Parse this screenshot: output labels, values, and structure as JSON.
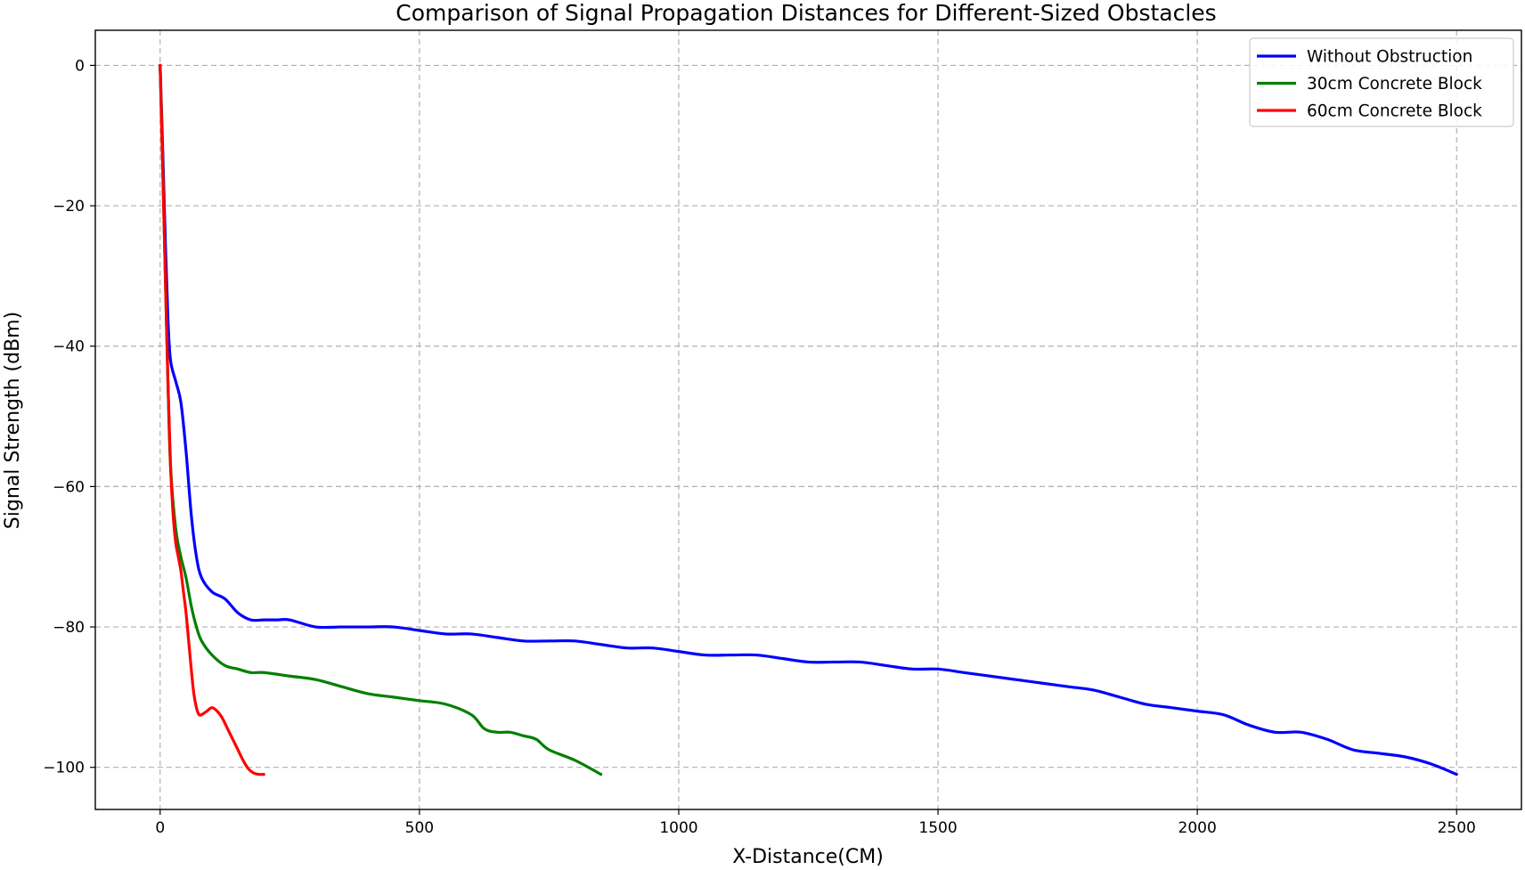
{
  "chart_data": {
    "type": "line",
    "title": "Comparison of Signal Propagation Distances for Different-Sized Obstacles",
    "xlabel": "X-Distance(CM)",
    "ylabel": "Signal Strength (dBm)",
    "xlim": [
      -125,
      2625
    ],
    "ylim": [
      -106,
      5
    ],
    "xticks": [
      0,
      500,
      1000,
      1500,
      2000,
      2500
    ],
    "yticks": [
      0,
      -20,
      -40,
      -60,
      -80,
      -100
    ],
    "xtick_labels": [
      "0",
      "500",
      "1000",
      "1500",
      "2000",
      "2500"
    ],
    "ytick_labels": [
      "0",
      "−20",
      "−40",
      "−60",
      "−80",
      "−100"
    ],
    "grid": true,
    "legend_position": "top-right",
    "series": [
      {
        "name": "Without Obstruction",
        "color": "#0000ff",
        "x": [
          0,
          5,
          10,
          15,
          20,
          30,
          40,
          50,
          60,
          70,
          80,
          100,
          125,
          150,
          175,
          200,
          225,
          250,
          300,
          350,
          400,
          450,
          500,
          550,
          600,
          650,
          700,
          750,
          800,
          850,
          900,
          950,
          1000,
          1050,
          1100,
          1150,
          1200,
          1250,
          1300,
          1350,
          1400,
          1450,
          1500,
          1550,
          1600,
          1650,
          1700,
          1750,
          1800,
          1850,
          1900,
          1950,
          2000,
          2050,
          2100,
          2150,
          2200,
          2250,
          2300,
          2350,
          2400,
          2450,
          2500
        ],
        "y": [
          0,
          -12,
          -25,
          -36,
          -42,
          -45,
          -48,
          -55,
          -64,
          -70,
          -73,
          -75,
          -76,
          -78,
          -79,
          -79,
          -79,
          -79,
          -80,
          -80,
          -80,
          -80,
          -80.5,
          -81,
          -81,
          -81.5,
          -82,
          -82,
          -82,
          -82.5,
          -83,
          -83,
          -83.5,
          -84,
          -84,
          -84,
          -84.5,
          -85,
          -85,
          -85,
          -85.5,
          -86,
          -86,
          -86.5,
          -87,
          -87.5,
          -88,
          -88.5,
          -89,
          -90,
          -91,
          -91.5,
          -92,
          -92.5,
          -94,
          -95,
          -95,
          -96,
          -97.5,
          -98,
          -98.5,
          -99.5,
          -101
        ]
      },
      {
        "name": "30cm Concrete Block",
        "color": "#008000",
        "x": [
          0,
          5,
          10,
          15,
          20,
          30,
          40,
          50,
          60,
          70,
          80,
          100,
          125,
          150,
          175,
          200,
          250,
          300,
          350,
          400,
          450,
          500,
          550,
          600,
          625,
          650,
          675,
          700,
          725,
          750,
          800,
          850
        ],
        "y": [
          0,
          -14,
          -30,
          -45,
          -57,
          -66,
          -70,
          -73,
          -77,
          -80,
          -82,
          -84,
          -85.5,
          -86,
          -86.5,
          -86.5,
          -87,
          -87.5,
          -88.5,
          -89.5,
          -90,
          -90.5,
          -91,
          -92.5,
          -94.5,
          -95,
          -95,
          -95.5,
          -96,
          -97.5,
          -99,
          -101
        ]
      },
      {
        "name": "60cm Concrete Block",
        "color": "#ff0000",
        "x": [
          0,
          5,
          10,
          15,
          20,
          25,
          30,
          35,
          40,
          45,
          50,
          55,
          60,
          65,
          70,
          75,
          80,
          90,
          100,
          110,
          120,
          130,
          140,
          150,
          160,
          170,
          180,
          190,
          200
        ],
        "y": [
          0,
          -15,
          -30,
          -45,
          -57,
          -64,
          -68,
          -70,
          -72,
          -75,
          -78,
          -82,
          -86,
          -89.5,
          -91.5,
          -92.5,
          -92.5,
          -92,
          -91.5,
          -92,
          -93,
          -94.5,
          -96,
          -97.5,
          -99,
          -100.2,
          -100.8,
          -101,
          -101
        ]
      }
    ]
  }
}
